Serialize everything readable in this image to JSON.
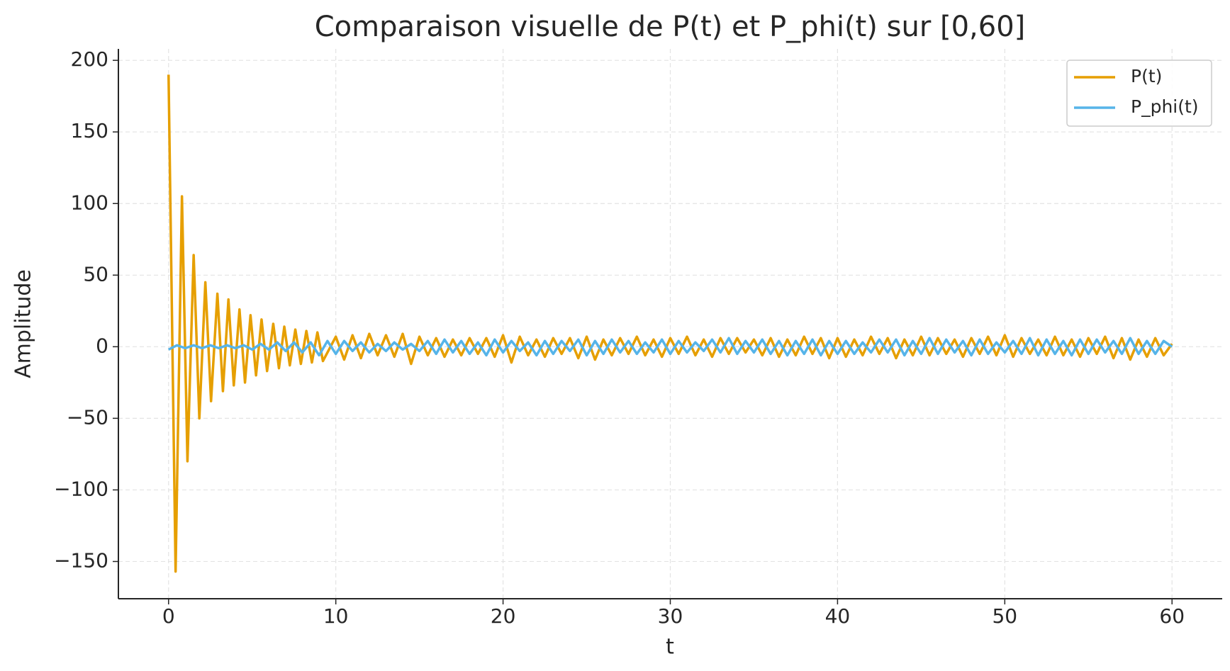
{
  "chart_data": {
    "type": "line",
    "title": "Comparaison visuelle de P(t) et P_phi(t) sur [0,60]",
    "xlabel": "t",
    "ylabel": "Amplitude",
    "xlim": [
      -3,
      63
    ],
    "ylim": [
      -176,
      208
    ],
    "xticks": [
      0,
      10,
      20,
      30,
      40,
      50,
      60
    ],
    "yticks": [
      {
        "value": -150,
        "label": "−150"
      },
      {
        "value": -100,
        "label": "−100"
      },
      {
        "value": -50,
        "label": "−50"
      },
      0,
      50,
      100,
      150,
      200
    ],
    "grid": true,
    "legend": "upper right",
    "series": [
      {
        "name": "P(t)",
        "color": "#e69f00",
        "x": [
          0,
          0.42,
          0.8,
          1.13,
          1.5,
          1.84,
          2.2,
          2.54,
          2.92,
          3.25,
          3.58,
          3.9,
          4.24,
          4.57,
          4.9,
          5.23,
          5.56,
          5.89,
          6.26,
          6.6,
          6.92,
          7.25,
          7.58,
          7.91,
          8.24,
          8.57,
          8.9,
          9.23,
          10,
          10.5,
          11,
          11.5,
          12,
          12.5,
          13,
          13.5,
          14,
          14.5,
          15,
          15.5,
          16,
          16.5,
          17,
          17.5,
          18,
          18.5,
          19,
          19.5,
          20,
          20.5,
          21,
          21.5,
          22,
          22.5,
          23,
          23.5,
          24,
          24.5,
          25,
          25.5,
          26,
          26.5,
          27,
          27.5,
          28,
          28.5,
          29,
          29.5,
          30,
          30.5,
          31,
          31.5,
          32,
          32.5,
          33,
          33.5,
          34,
          34.5,
          35,
          35.5,
          36,
          36.5,
          37,
          37.5,
          38,
          38.5,
          39,
          39.5,
          40,
          40.5,
          41,
          41.5,
          42,
          42.5,
          43,
          43.5,
          44,
          44.5,
          45,
          45.5,
          46,
          46.5,
          47,
          47.5,
          48,
          48.5,
          49,
          49.5,
          50,
          50.5,
          51,
          51.5,
          52,
          52.5,
          53,
          53.5,
          54,
          54.5,
          55,
          55.5,
          56,
          56.5,
          57,
          57.5,
          58,
          58.5,
          59,
          59.5,
          60
        ],
        "values": [
          190,
          -157,
          105,
          -80,
          64,
          -50,
          45,
          -38,
          37,
          -31,
          33,
          -27,
          26,
          -25,
          22,
          -20,
          19,
          -17,
          16,
          -15,
          14,
          -13,
          12,
          -12,
          11,
          -11,
          10,
          -10,
          7,
          -9,
          8,
          -8,
          9,
          -6,
          8,
          -7,
          9,
          -12,
          7,
          -6,
          6,
          -7,
          5,
          -6,
          6,
          -5,
          6,
          -7,
          8,
          -11,
          7,
          -6,
          5,
          -7,
          6,
          -5,
          6,
          -8,
          7,
          -9,
          5,
          -6,
          6,
          -5,
          7,
          -6,
          5,
          -7,
          6,
          -5,
          7,
          -6,
          5,
          -7,
          6,
          -5,
          6,
          -4,
          5,
          -6,
          6,
          -7,
          5,
          -6,
          7,
          -5,
          6,
          -8,
          6,
          -7,
          5,
          -6,
          7,
          -5,
          6,
          -8,
          5,
          -6,
          7,
          -6,
          6,
          -5,
          5,
          -7,
          6,
          -5,
          7,
          -6,
          8,
          -7,
          6,
          -5,
          5,
          -6,
          7,
          -6,
          5,
          -7,
          6,
          -5,
          7,
          -8,
          6,
          -9,
          5,
          -7,
          6,
          -6,
          2
        ]
      },
      {
        "name": "P_phi(t)",
        "color": "#56b4e9",
        "x": [
          0,
          0.5,
          1,
          1.5,
          2,
          2.5,
          3,
          3.5,
          4,
          4.5,
          5,
          5.5,
          6,
          6.5,
          7,
          7.5,
          8,
          8.5,
          9,
          9.5,
          10,
          10.5,
          11,
          11.5,
          12,
          12.5,
          13,
          13.5,
          14,
          14.5,
          15,
          15.5,
          16,
          16.5,
          17,
          17.5,
          18,
          18.5,
          19,
          19.5,
          20,
          20.5,
          21,
          21.5,
          22,
          22.5,
          23,
          23.5,
          24,
          24.5,
          25,
          25.5,
          26,
          26.5,
          27,
          27.5,
          28,
          28.5,
          29,
          29.5,
          30,
          30.5,
          31,
          31.5,
          32,
          32.5,
          33,
          33.5,
          34,
          34.5,
          35,
          35.5,
          36,
          36.5,
          37,
          37.5,
          38,
          38.5,
          39,
          39.5,
          40,
          40.5,
          41,
          41.5,
          42,
          42.5,
          43,
          43.5,
          44,
          44.5,
          45,
          45.5,
          46,
          46.5,
          47,
          47.5,
          48,
          48.5,
          49,
          49.5,
          50,
          50.5,
          51,
          51.5,
          52,
          52.5,
          53,
          53.5,
          54,
          54.5,
          55,
          55.5,
          56,
          56.5,
          57,
          57.5,
          58,
          58.5,
          59,
          59.5,
          60
        ],
        "values": [
          -2,
          1,
          -1,
          1,
          -1,
          1,
          -1,
          1,
          -1,
          1,
          -2,
          2,
          -2,
          3,
          -3,
          3,
          -4,
          3,
          -6,
          4,
          -5,
          4,
          -3,
          3,
          -4,
          2,
          -3,
          3,
          -2,
          2,
          -3,
          4,
          -5,
          5,
          -4,
          4,
          -5,
          3,
          -6,
          5,
          -4,
          4,
          -3,
          3,
          -6,
          4,
          -5,
          4,
          -3,
          5,
          -6,
          4,
          -5,
          5,
          -4,
          4,
          -5,
          3,
          -4,
          5,
          -5,
          4,
          -4,
          3,
          -3,
          5,
          -4,
          6,
          -5,
          4,
          -4,
          5,
          -5,
          4,
          -6,
          4,
          -5,
          5,
          -6,
          4,
          -5,
          4,
          -5,
          3,
          -4,
          5,
          -4,
          5,
          -6,
          4,
          -5,
          6,
          -5,
          5,
          -4,
          4,
          -6,
          5,
          -5,
          3,
          -4,
          4,
          -5,
          6,
          -6,
          5,
          -5,
          4,
          -6,
          5,
          -5,
          5,
          -4,
          4,
          -5,
          6,
          -5,
          4,
          -5,
          4,
          0
        ]
      }
    ]
  }
}
